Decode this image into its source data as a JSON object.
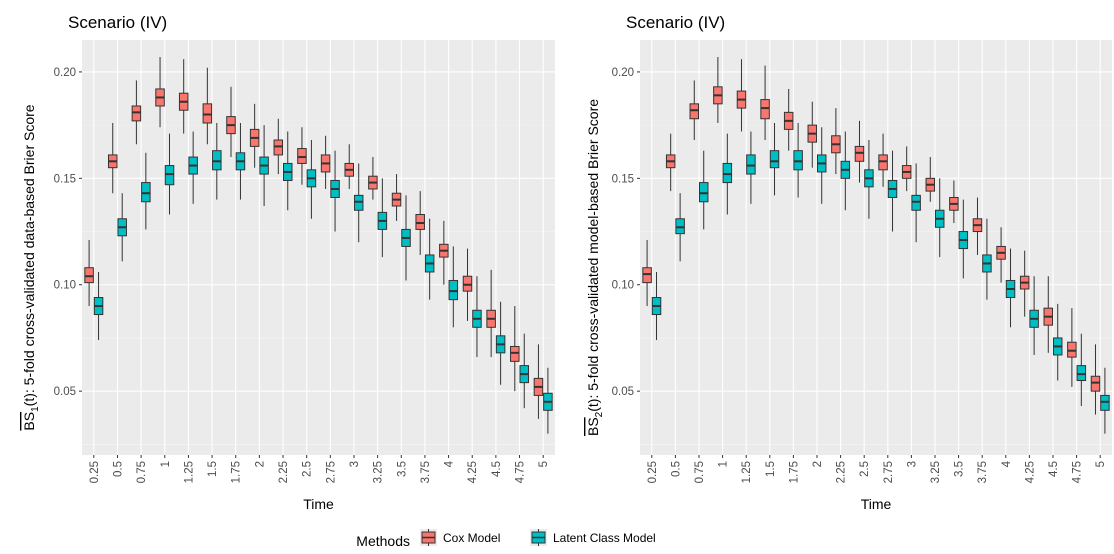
{
  "legend": {
    "title": "Methods",
    "items": [
      {
        "label": "Cox Model",
        "color": "#F8766D"
      },
      {
        "label": "Latent Class Model",
        "color": "#00BFC4"
      }
    ]
  },
  "chart_data": [
    {
      "type": "boxplot",
      "title": "Scenario (IV)",
      "xlabel": "Time",
      "ylabel_base": "BS",
      "ylabel_sub": "1",
      "ylabel_rest": "(t): 5-fold cross-validated data-based Brier Score",
      "ylim": [
        0.02,
        0.215
      ],
      "yticks": [
        0.05,
        0.1,
        0.15,
        0.2
      ],
      "ytick_labels": [
        "0.05",
        "0.10",
        "0.15",
        "0.20"
      ],
      "categories": [
        "0.25",
        "0.5",
        "0.75",
        "1",
        "1.25",
        "1.5",
        "1.75",
        "2",
        "2.25",
        "2.5",
        "2.75",
        "3",
        "3.25",
        "3.5",
        "3.75",
        "4",
        "4.25",
        "4.5",
        "4.75",
        "5"
      ],
      "series": [
        {
          "name": "Cox Model",
          "color": "#F8766D",
          "median": [
            0.104,
            0.158,
            0.181,
            0.188,
            0.186,
            0.18,
            0.175,
            0.169,
            0.165,
            0.16,
            0.157,
            0.154,
            0.148,
            0.14,
            0.129,
            0.116,
            0.1,
            0.084,
            0.068,
            0.052
          ],
          "q1": [
            0.101,
            0.155,
            0.177,
            0.184,
            0.182,
            0.176,
            0.171,
            0.165,
            0.161,
            0.157,
            0.153,
            0.151,
            0.145,
            0.137,
            0.126,
            0.113,
            0.097,
            0.08,
            0.064,
            0.048
          ],
          "q3": [
            0.108,
            0.161,
            0.184,
            0.192,
            0.19,
            0.185,
            0.179,
            0.173,
            0.168,
            0.164,
            0.161,
            0.157,
            0.151,
            0.143,
            0.133,
            0.119,
            0.104,
            0.088,
            0.071,
            0.056
          ],
          "lo": [
            0.09,
            0.143,
            0.166,
            0.174,
            0.171,
            0.166,
            0.16,
            0.155,
            0.152,
            0.147,
            0.145,
            0.145,
            0.14,
            0.13,
            0.114,
            0.1,
            0.083,
            0.066,
            0.05,
            0.037
          ],
          "hi": [
            0.121,
            0.176,
            0.196,
            0.207,
            0.206,
            0.202,
            0.193,
            0.185,
            0.178,
            0.174,
            0.17,
            0.166,
            0.16,
            0.152,
            0.144,
            0.13,
            0.117,
            0.107,
            0.09,
            0.072
          ]
        },
        {
          "name": "Latent Class Model",
          "color": "#00BFC4",
          "median": [
            0.09,
            0.127,
            0.143,
            0.152,
            0.156,
            0.158,
            0.158,
            0.156,
            0.153,
            0.15,
            0.145,
            0.139,
            0.13,
            0.122,
            0.11,
            0.097,
            0.084,
            0.072,
            0.058,
            0.045
          ],
          "q1": [
            0.086,
            0.123,
            0.139,
            0.147,
            0.152,
            0.154,
            0.154,
            0.152,
            0.149,
            0.146,
            0.141,
            0.135,
            0.126,
            0.118,
            0.106,
            0.093,
            0.08,
            0.068,
            0.054,
            0.041
          ],
          "q3": [
            0.094,
            0.131,
            0.148,
            0.156,
            0.16,
            0.163,
            0.162,
            0.16,
            0.157,
            0.154,
            0.149,
            0.142,
            0.134,
            0.126,
            0.114,
            0.102,
            0.088,
            0.076,
            0.062,
            0.049
          ],
          "lo": [
            0.074,
            0.111,
            0.126,
            0.133,
            0.138,
            0.14,
            0.14,
            0.137,
            0.135,
            0.131,
            0.125,
            0.12,
            0.113,
            0.102,
            0.093,
            0.08,
            0.066,
            0.053,
            0.042,
            0.03
          ],
          "hi": [
            0.106,
            0.143,
            0.162,
            0.171,
            0.172,
            0.176,
            0.176,
            0.175,
            0.172,
            0.168,
            0.163,
            0.157,
            0.15,
            0.142,
            0.131,
            0.118,
            0.104,
            0.092,
            0.077,
            0.061
          ]
        }
      ]
    },
    {
      "type": "boxplot",
      "title": "Scenario (IV)",
      "xlabel": "Time",
      "ylabel_base": "BS",
      "ylabel_sub": "2",
      "ylabel_rest": "(t): 5-fold cross-validated model-based Brier Score",
      "ylim": [
        0.02,
        0.215
      ],
      "yticks": [
        0.05,
        0.1,
        0.15,
        0.2
      ],
      "ytick_labels": [
        "0.05",
        "0.10",
        "0.15",
        "0.20"
      ],
      "categories": [
        "0.25",
        "0.5",
        "0.75",
        "1",
        "1.25",
        "1.5",
        "1.75",
        "2",
        "2.25",
        "2.5",
        "2.75",
        "3",
        "3.25",
        "3.5",
        "3.75",
        "4",
        "4.25",
        "4.5",
        "4.75",
        "5"
      ],
      "series": [
        {
          "name": "Cox Model",
          "color": "#F8766D",
          "median": [
            0.105,
            0.158,
            0.182,
            0.189,
            0.187,
            0.183,
            0.177,
            0.171,
            0.166,
            0.162,
            0.158,
            0.153,
            0.147,
            0.138,
            0.128,
            0.115,
            0.101,
            0.085,
            0.069,
            0.054
          ],
          "q1": [
            0.101,
            0.155,
            0.178,
            0.185,
            0.183,
            0.178,
            0.173,
            0.167,
            0.162,
            0.158,
            0.154,
            0.15,
            0.144,
            0.135,
            0.125,
            0.112,
            0.098,
            0.081,
            0.066,
            0.05
          ],
          "q3": [
            0.108,
            0.161,
            0.185,
            0.193,
            0.191,
            0.187,
            0.181,
            0.175,
            0.17,
            0.165,
            0.161,
            0.156,
            0.15,
            0.141,
            0.131,
            0.118,
            0.104,
            0.089,
            0.073,
            0.057
          ],
          "lo": [
            0.09,
            0.144,
            0.168,
            0.176,
            0.172,
            0.168,
            0.163,
            0.155,
            0.152,
            0.148,
            0.146,
            0.144,
            0.139,
            0.129,
            0.114,
            0.101,
            0.085,
            0.068,
            0.052,
            0.039
          ],
          "hi": [
            0.121,
            0.171,
            0.196,
            0.207,
            0.206,
            0.203,
            0.192,
            0.186,
            0.183,
            0.177,
            0.171,
            0.165,
            0.16,
            0.149,
            0.141,
            0.127,
            0.116,
            0.104,
            0.089,
            0.072
          ]
        },
        {
          "name": "Latent Class Model",
          "color": "#00BFC4",
          "median": [
            0.09,
            0.127,
            0.143,
            0.152,
            0.156,
            0.158,
            0.158,
            0.157,
            0.154,
            0.15,
            0.145,
            0.139,
            0.131,
            0.121,
            0.11,
            0.098,
            0.084,
            0.071,
            0.058,
            0.045
          ],
          "q1": [
            0.086,
            0.124,
            0.139,
            0.148,
            0.152,
            0.155,
            0.154,
            0.153,
            0.15,
            0.146,
            0.141,
            0.135,
            0.127,
            0.117,
            0.106,
            0.094,
            0.08,
            0.067,
            0.055,
            0.041
          ],
          "q3": [
            0.094,
            0.131,
            0.148,
            0.157,
            0.161,
            0.163,
            0.163,
            0.161,
            0.158,
            0.154,
            0.149,
            0.142,
            0.135,
            0.125,
            0.114,
            0.102,
            0.088,
            0.075,
            0.062,
            0.048
          ],
          "lo": [
            0.074,
            0.111,
            0.126,
            0.133,
            0.138,
            0.142,
            0.141,
            0.138,
            0.135,
            0.131,
            0.125,
            0.12,
            0.113,
            0.103,
            0.093,
            0.08,
            0.067,
            0.055,
            0.043,
            0.03
          ],
          "hi": [
            0.106,
            0.143,
            0.163,
            0.171,
            0.172,
            0.176,
            0.176,
            0.174,
            0.172,
            0.168,
            0.163,
            0.157,
            0.15,
            0.14,
            0.131,
            0.117,
            0.104,
            0.091,
            0.077,
            0.061
          ]
        }
      ]
    }
  ]
}
